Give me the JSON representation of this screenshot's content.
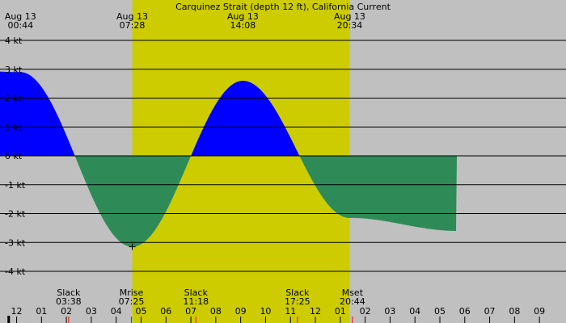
{
  "chart_data": {
    "type": "area",
    "title": "Carquinez Strait (depth 12 ft), California Current",
    "unit": "kt",
    "x_range_hours": [
      -0.5,
      33.6
    ],
    "ylim": [
      -4.45,
      4.8
    ],
    "y_ticks": [
      4,
      3,
      2,
      1,
      0,
      -1,
      -2,
      -3,
      -4
    ],
    "y_tick_labels": [
      "4 kt",
      "3 kt",
      "2 kt",
      "1 kt",
      "0 kt",
      "-1 kt",
      "-2 kt",
      "-3 kt",
      "-4 kt"
    ],
    "x_tick_labels": [
      "11",
      "12",
      "01",
      "02",
      "03",
      "04",
      "05",
      "06",
      "07",
      "08",
      "09",
      "10",
      "11",
      "12",
      "01",
      "02",
      "03",
      "04",
      "05",
      "06",
      "07",
      "08",
      "09"
    ],
    "daylight": {
      "start": "07:28",
      "end": "20:34"
    },
    "top_labels": [
      {
        "date": "Aug 13",
        "time": "00:44"
      },
      {
        "date": "Aug 13",
        "time": "07:28"
      },
      {
        "date": "Aug 13",
        "time": "14:08"
      },
      {
        "date": "Aug 13",
        "time": "20:34"
      }
    ],
    "events": [
      {
        "label": "Slack",
        "time": "03:38"
      },
      {
        "label": "Mrise",
        "time": "07:25"
      },
      {
        "label": "Slack",
        "time": "11:18"
      },
      {
        "label": "Slack",
        "time": "17:25"
      },
      {
        "label": "Mset",
        "time": "20:44"
      }
    ],
    "extremes": [
      {
        "time": "00:44",
        "value": 2.9
      },
      {
        "time": "07:28",
        "value": -3.15
      },
      {
        "time": "14:08",
        "value": 2.6
      },
      {
        "time": "20:34",
        "value": -2.15
      }
    ],
    "slacks": [
      "03:38",
      "11:18",
      "17:25"
    ],
    "colors": {
      "background": "#c0c0c0",
      "daylight": "#cccc00",
      "flood": "#0000ff",
      "ebb": "#2e8b57",
      "grid": "#000000",
      "event_tick": "#ff0000"
    }
  }
}
